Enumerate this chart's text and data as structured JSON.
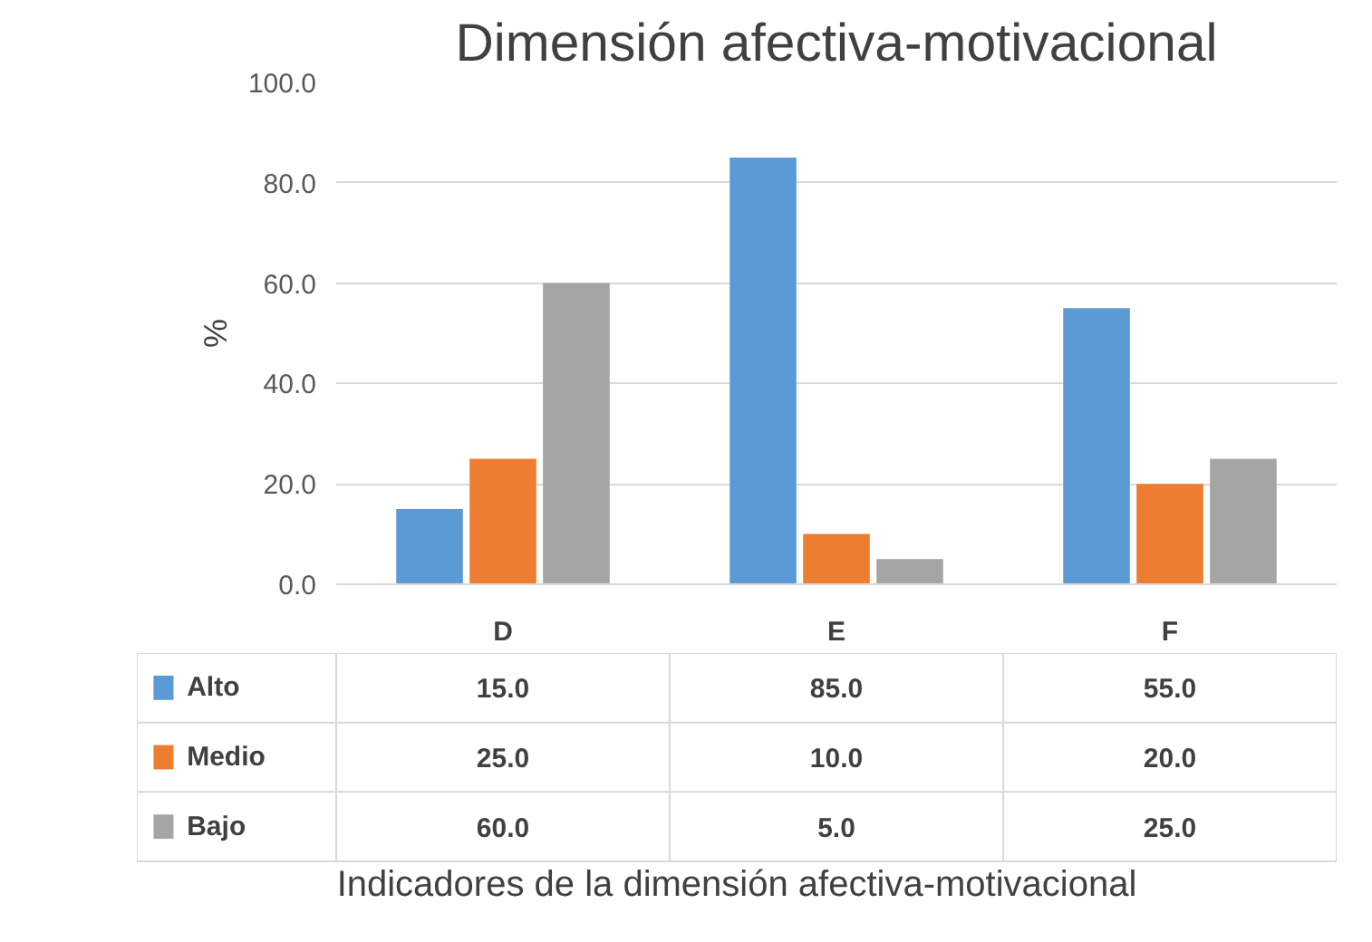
{
  "chart_data": {
    "type": "bar",
    "title": "Dimensión afectiva-motivacional",
    "ylabel": "%",
    "annotations": [
      "Indicadores de la dimensión afectiva-motivacional"
    ],
    "categories": [
      "D",
      "E",
      "F"
    ],
    "series": [
      {
        "name": "Alto",
        "color": "#5b9bd5",
        "values": [
          15.0,
          85.0,
          55.0
        ],
        "value_labels": [
          "15.0",
          "85.0",
          "55.0"
        ]
      },
      {
        "name": "Medio",
        "color": "#ed7d31",
        "values": [
          25.0,
          10.0,
          20.0
        ],
        "value_labels": [
          "25.0",
          "10.0",
          "20.0"
        ]
      },
      {
        "name": "Bajo",
        "color": "#a5a5a5",
        "values": [
          60.0,
          5.0,
          25.0
        ],
        "value_labels": [
          "60.0",
          "5.0",
          "25.0"
        ]
      }
    ],
    "ylim": [
      0,
      100
    ],
    "yticks": [
      {
        "value": 0,
        "label": "0.0"
      },
      {
        "value": 20,
        "label": "20.0"
      },
      {
        "value": 40,
        "label": "40.0"
      },
      {
        "value": 60,
        "label": "60.0"
      },
      {
        "value": 80,
        "label": "80.0"
      },
      {
        "value": 100,
        "label": "100.0"
      }
    ],
    "grid": "y",
    "legend": "bottom"
  }
}
